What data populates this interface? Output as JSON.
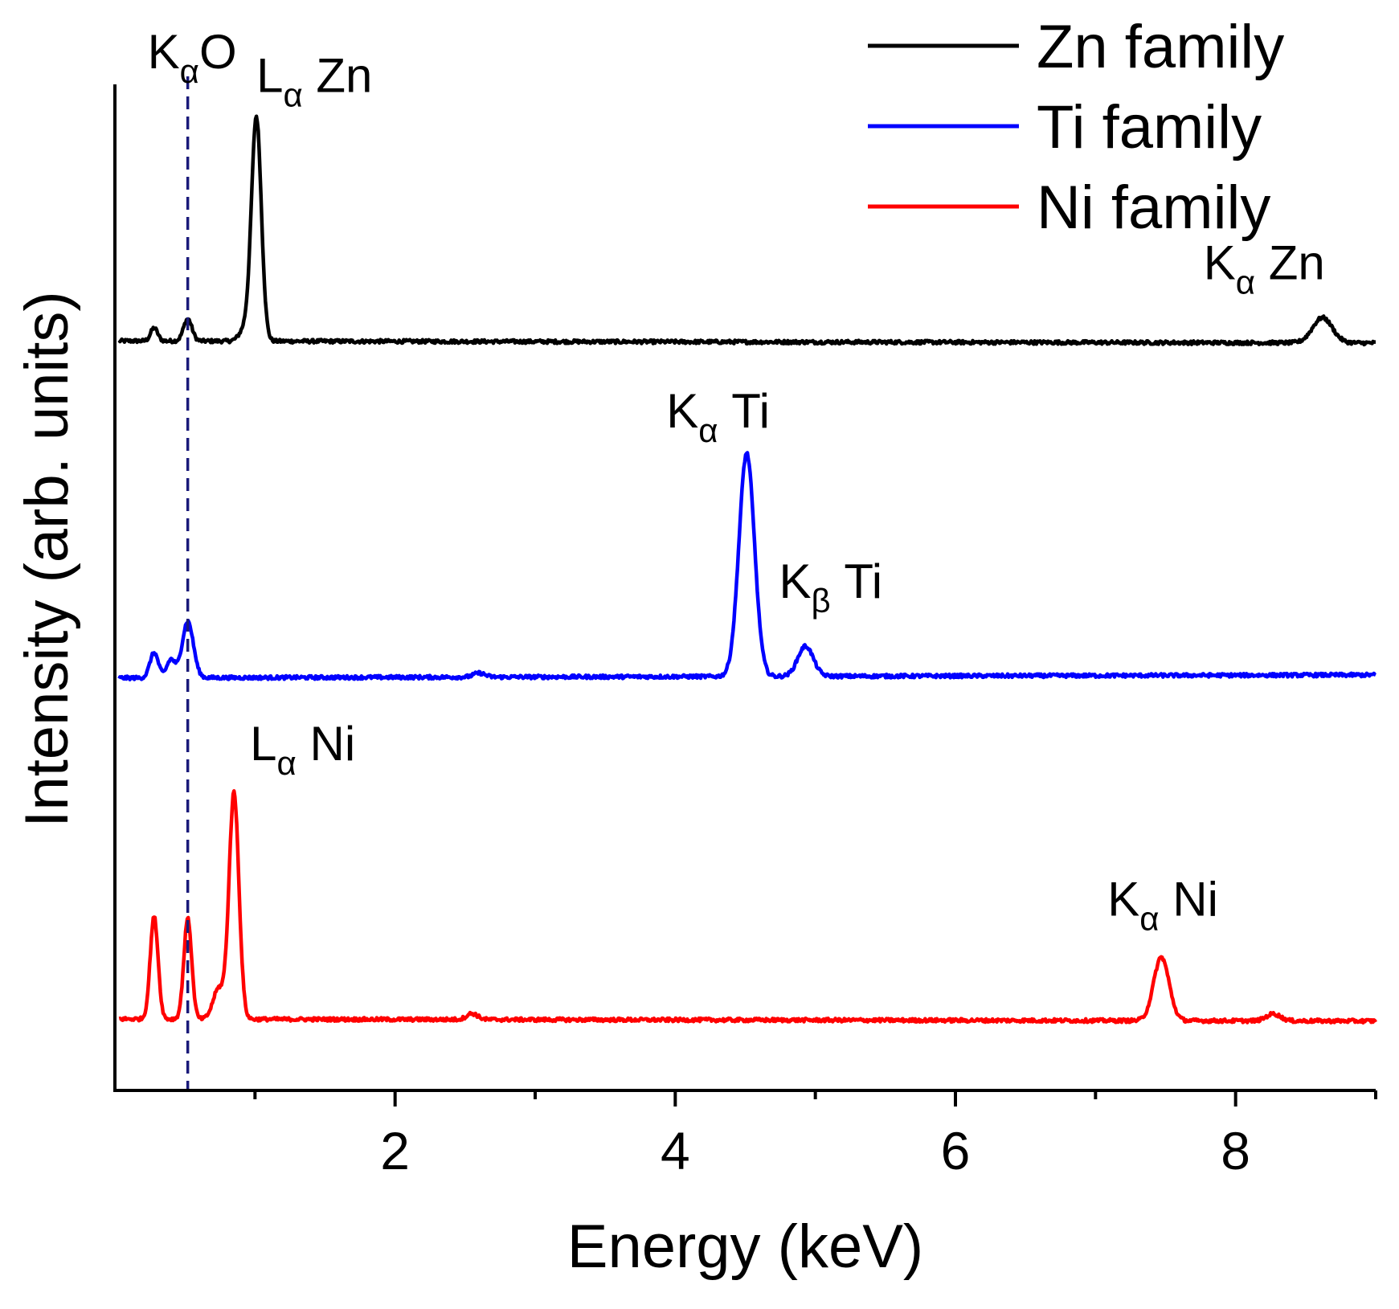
{
  "chart_data": {
    "type": "line",
    "title": "",
    "xlabel": "Energy (keV)",
    "ylabel": "Intensity (arb. units)",
    "xlim": [
      0.0,
      9.0
    ],
    "ylim": [
      0,
      1
    ],
    "x_ticks": [
      2,
      4,
      6,
      8
    ],
    "x_minor_ticks": [
      1,
      3,
      5,
      7,
      9
    ],
    "grid": false,
    "legend_position": "top-right",
    "reference_line": {
      "x": 0.52,
      "style": "dashed",
      "color": "#1a1a7a"
    },
    "series": [
      {
        "name": "Zn family",
        "color": "#000000",
        "baseline": 0.745,
        "end_baseline": 0.743,
        "peaks": [
          {
            "center": 0.28,
            "height": 0.013,
            "width": 0.025
          },
          {
            "center": 0.52,
            "height": 0.022,
            "width": 0.03
          },
          {
            "center": 0.93,
            "height": 0.012,
            "width": 0.04
          },
          {
            "center": 1.01,
            "height": 0.222,
            "width": 0.035
          },
          {
            "center": 8.62,
            "height": 0.025,
            "width": 0.07
          }
        ]
      },
      {
        "name": "Ti family",
        "color": "#0000ff",
        "baseline": 0.41,
        "end_baseline": 0.413,
        "peaks": [
          {
            "center": 0.28,
            "height": 0.025,
            "width": 0.03
          },
          {
            "center": 0.4,
            "height": 0.018,
            "width": 0.03
          },
          {
            "center": 0.52,
            "height": 0.056,
            "width": 0.04
          },
          {
            "center": 2.6,
            "height": 0.004,
            "width": 0.04
          },
          {
            "center": 4.51,
            "height": 0.222,
            "width": 0.055
          },
          {
            "center": 4.93,
            "height": 0.03,
            "width": 0.055
          }
        ]
      },
      {
        "name": "Ni family",
        "color": "#ff0000",
        "baseline": 0.071,
        "end_baseline": 0.069,
        "peaks": [
          {
            "center": 0.28,
            "height": 0.102,
            "width": 0.028
          },
          {
            "center": 0.52,
            "height": 0.1,
            "width": 0.028
          },
          {
            "center": 0.74,
            "height": 0.03,
            "width": 0.04
          },
          {
            "center": 0.85,
            "height": 0.225,
            "width": 0.035
          },
          {
            "center": 2.55,
            "height": 0.006,
            "width": 0.04
          },
          {
            "center": 7.47,
            "height": 0.063,
            "width": 0.055
          },
          {
            "center": 8.27,
            "height": 0.007,
            "width": 0.05
          }
        ]
      }
    ],
    "annotations": [
      {
        "id": "ka-o",
        "main": "K",
        "sub": "α",
        "rest": "O",
        "series": "reference",
        "x": 0.52
      },
      {
        "id": "la-zn",
        "main": "L",
        "sub": "α",
        "rest": " Zn",
        "series": "Zn family",
        "x": 1.01
      },
      {
        "id": "ka-zn",
        "main": "K",
        "sub": "α",
        "rest": " Zn",
        "series": "Zn family",
        "x": 8.62
      },
      {
        "id": "ka-ti",
        "main": "K",
        "sub": "α",
        "rest": " Ti",
        "series": "Ti family",
        "x": 4.51
      },
      {
        "id": "kb-ti",
        "main": "K",
        "sub": "β",
        "rest": " Ti",
        "series": "Ti family",
        "x": 4.93
      },
      {
        "id": "la-ni",
        "main": "L",
        "sub": "α",
        "rest": " Ni",
        "series": "Ni family",
        "x": 0.85
      },
      {
        "id": "ka-ni",
        "main": "K",
        "sub": "α",
        "rest": " Ni",
        "series": "Ni family",
        "x": 7.47
      }
    ]
  }
}
